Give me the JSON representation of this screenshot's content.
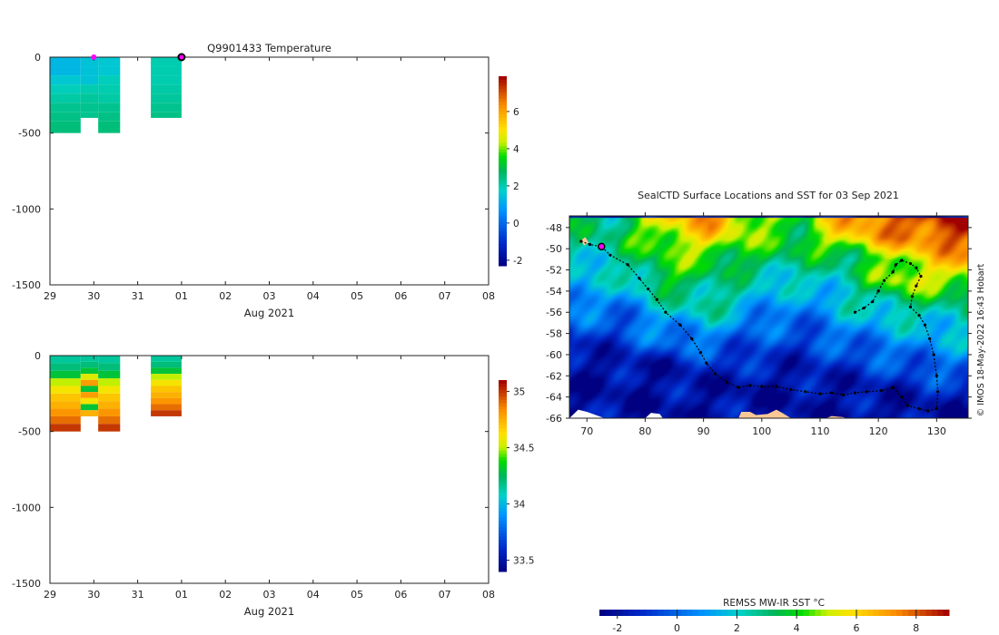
{
  "chart_data": [
    {
      "type": "heatmap",
      "title": "Q9901433  Temperature",
      "xlabel": "Aug 2021",
      "ylabel": "",
      "x_ticks": [
        "29",
        "30",
        "31",
        "01",
        "02",
        "03",
        "04",
        "05",
        "06",
        "07",
        "08"
      ],
      "y_ticks": [
        "0",
        "-500",
        "-1000",
        "-1500"
      ],
      "y_tick_values": [
        0,
        -500,
        -1000,
        -1500
      ],
      "ylim": [
        -1500,
        0
      ],
      "xlim_days": [
        0,
        10
      ],
      "colorbar": {
        "range": [
          -2.3,
          7.9
        ],
        "ticks": [
          "-2",
          "0",
          "2",
          "4",
          "6"
        ],
        "tick_values": [
          -2,
          0,
          2,
          4,
          6
        ]
      },
      "profiles": [
        {
          "start_day": 0.0,
          "end_day": 0.7,
          "depths": [
            0,
            -60,
            -120,
            -180,
            -240,
            -300,
            -360,
            -420
          ],
          "max_depth": -500,
          "values": [
            1.3,
            1.3,
            1.6,
            1.9,
            2.1,
            2.3,
            2.4,
            2.5
          ]
        },
        {
          "start_day": 0.7,
          "end_day": 1.1,
          "depths": [
            0,
            -60,
            -120,
            -180,
            -240,
            -300,
            -360
          ],
          "max_depth": -400,
          "values": [
            1.5,
            1.5,
            1.5,
            2.0,
            2.2,
            2.3,
            2.3
          ]
        },
        {
          "start_day": 1.1,
          "end_day": 1.6,
          "depths": [
            0,
            -60,
            -120,
            -180,
            -240,
            -300,
            -360,
            -420
          ],
          "max_depth": -500,
          "values": [
            1.6,
            1.6,
            1.9,
            2.0,
            2.1,
            2.3,
            2.4,
            2.5
          ]
        },
        {
          "start_day": 2.3,
          "end_day": 3.0,
          "depths": [
            0,
            -60,
            -120,
            -180,
            -240,
            -300,
            -360
          ],
          "max_depth": -400,
          "values": [
            2.0,
            2.0,
            2.0,
            2.1,
            2.2,
            2.3,
            2.4
          ]
        }
      ],
      "markers": [
        {
          "day": 1.0,
          "depth": 0,
          "style": "small-magenta"
        },
        {
          "day": 3.0,
          "depth": 0,
          "style": "large-magenta-outlined"
        }
      ]
    },
    {
      "type": "heatmap",
      "title": "",
      "xlabel": "Aug 2021",
      "x_ticks": [
        "29",
        "30",
        "31",
        "01",
        "02",
        "03",
        "04",
        "05",
        "06",
        "07",
        "08"
      ],
      "y_ticks": [
        "0",
        "-500",
        "-1000",
        "-1500"
      ],
      "y_tick_values": [
        0,
        -500,
        -1000,
        -1500
      ],
      "ylim": [
        -1500,
        0
      ],
      "xlim_days": [
        0,
        10
      ],
      "colorbar": {
        "range": [
          33.4,
          35.1
        ],
        "ticks": [
          "35",
          "34.5",
          "34",
          "33.5"
        ],
        "tick_values": [
          35,
          34.5,
          34,
          33.5
        ]
      },
      "profiles": [
        {
          "start_day": 0.0,
          "end_day": 0.7,
          "depths": [
            0,
            -50,
            -100,
            -150,
            -200,
            -250,
            -300,
            -350,
            -400,
            -450
          ],
          "max_depth": -500,
          "values": [
            34.15,
            34.2,
            34.3,
            34.5,
            34.6,
            34.7,
            34.75,
            34.82,
            34.9,
            35.0
          ]
        },
        {
          "start_day": 0.7,
          "end_day": 1.1,
          "depths": [
            0,
            -40,
            -80,
            -120,
            -160,
            -200,
            -240,
            -280,
            -320,
            -360
          ],
          "max_depth": -400,
          "values": [
            34.15,
            34.2,
            34.3,
            34.55,
            34.8,
            34.3,
            34.8,
            34.6,
            34.3,
            34.75
          ]
        },
        {
          "start_day": 1.1,
          "end_day": 1.6,
          "depths": [
            0,
            -50,
            -100,
            -150,
            -200,
            -250,
            -300,
            -350,
            -400,
            -450
          ],
          "max_depth": -500,
          "values": [
            34.15,
            34.2,
            34.3,
            34.5,
            34.6,
            34.7,
            34.75,
            34.82,
            34.9,
            35.0
          ]
        },
        {
          "start_day": 2.3,
          "end_day": 3.0,
          "depths": [
            0,
            -40,
            -80,
            -120,
            -160,
            -200,
            -240,
            -280,
            -320,
            -360
          ],
          "max_depth": -400,
          "values": [
            34.15,
            34.2,
            34.3,
            34.5,
            34.6,
            34.7,
            34.75,
            34.82,
            34.9,
            35.0
          ]
        }
      ]
    },
    {
      "type": "heatmap",
      "title": "SealCTD Surface Locations and SST for 03 Sep 2021",
      "x_ticks": [
        "70",
        "80",
        "90",
        "100",
        "110",
        "120",
        "130"
      ],
      "x_tick_values": [
        70,
        80,
        90,
        100,
        110,
        120,
        130
      ],
      "y_ticks": [
        "-48",
        "-50",
        "-52",
        "-54",
        "-56",
        "-58",
        "-60",
        "-62",
        "-64",
        "-66"
      ],
      "y_tick_values": [
        -48,
        -50,
        -52,
        -54,
        -56,
        -58,
        -60,
        -62,
        -64,
        -66
      ],
      "xlim": [
        67,
        135.4
      ],
      "ylim": [
        -66,
        -46.9
      ],
      "credit": "© IMOS 18-May-2022 16:43 Hobart",
      "colorbar": {
        "label": "REMSS MW-IR SST °C",
        "range": [
          -2.6,
          9.1
        ],
        "ticks": [
          "-2",
          "0",
          "2",
          "4",
          "6",
          "8"
        ],
        "tick_values": [
          -2,
          0,
          2,
          4,
          6,
          8
        ]
      },
      "sst_grid": {
        "lats": [
          -47,
          -49,
          -51,
          -53,
          -55,
          -57,
          -59,
          -61,
          -63,
          -65,
          -66
        ],
        "lons": [
          67,
          75,
          83,
          91,
          99,
          107,
          115,
          123,
          131,
          135.4
        ],
        "values": [
          [
            3,
            3,
            6,
            7,
            5,
            4,
            7,
            8,
            9,
            9
          ],
          [
            2.5,
            3,
            5,
            6,
            4,
            4,
            6,
            7,
            8,
            8
          ],
          [
            2,
            2.5,
            4,
            4,
            3.5,
            3,
            3,
            5,
            6,
            7
          ],
          [
            1.5,
            1.5,
            4,
            3,
            2,
            2,
            2.5,
            5,
            5,
            5
          ],
          [
            1,
            0.5,
            2,
            3,
            1.5,
            0.5,
            2,
            3,
            3,
            3
          ],
          [
            0,
            -0.5,
            1,
            1.5,
            0,
            0,
            1,
            1.5,
            2,
            2
          ],
          [
            -1.8,
            -1,
            0,
            0,
            -0.5,
            -1,
            0,
            0.5,
            1,
            1
          ],
          [
            -2,
            -2,
            -2,
            -1,
            -1.5,
            -1.5,
            -1,
            -0.5,
            0,
            0
          ],
          [
            -2,
            -2,
            -2,
            -2,
            -2,
            -2,
            -1.8,
            -1.5,
            -1,
            -1
          ],
          [
            -2,
            -2,
            -2,
            -2,
            -2,
            -2,
            -2,
            -2,
            -2,
            -2
          ],
          [
            -2,
            -2,
            -2,
            -2,
            -2,
            -2,
            -2,
            -2,
            -2,
            -2
          ]
        ]
      },
      "track": [
        [
          69,
          -49.3
        ],
        [
          70.5,
          -49.6
        ],
        [
          72.5,
          -49.8
        ],
        [
          74,
          -50.6
        ],
        [
          77,
          -51.5
        ],
        [
          79,
          -52.8
        ],
        [
          80.5,
          -53.8
        ],
        [
          82,
          -54.8
        ],
        [
          83.5,
          -56
        ],
        [
          86,
          -57.2
        ],
        [
          88,
          -58.5
        ],
        [
          89.5,
          -59.8
        ],
        [
          90.5,
          -60.8
        ],
        [
          92,
          -61.8
        ],
        [
          94,
          -62.6
        ],
        [
          96,
          -63.1
        ],
        [
          98,
          -62.9
        ],
        [
          100,
          -63
        ],
        [
          102.5,
          -63
        ],
        [
          105,
          -63.3
        ],
        [
          107.5,
          -63.5
        ],
        [
          110,
          -63.7
        ],
        [
          112,
          -63.6
        ],
        [
          114,
          -63.8
        ],
        [
          116,
          -63.6
        ],
        [
          118,
          -63.5
        ],
        [
          120.5,
          -63.4
        ],
        [
          122.5,
          -63.1
        ],
        [
          124,
          -64
        ],
        [
          125,
          -64.8
        ],
        [
          127,
          -65.1
        ],
        [
          128.5,
          -65.3
        ],
        [
          130,
          -65.1
        ],
        [
          130.2,
          -63.5
        ],
        [
          130,
          -62
        ],
        [
          129.5,
          -60
        ],
        [
          128.8,
          -58.5
        ],
        [
          128,
          -57.2
        ],
        [
          127,
          -56.3
        ],
        [
          125.5,
          -55.5
        ],
        [
          125.8,
          -54.5
        ],
        [
          126.5,
          -53.5
        ],
        [
          127.3,
          -52.6
        ],
        [
          126.5,
          -51.8
        ],
        [
          125.5,
          -51.4
        ],
        [
          124,
          -51.1
        ],
        [
          123,
          -51.5
        ],
        [
          122.5,
          -52.2
        ],
        [
          121,
          -53
        ],
        [
          120,
          -54
        ],
        [
          119,
          -55
        ],
        [
          117.5,
          -55.6
        ],
        [
          116,
          -56
        ]
      ],
      "current_location": [
        72.5,
        -49.8
      ],
      "land": [
        {
          "fill": "#fcc896",
          "points": [
            [
              96,
              -66
            ],
            [
              96.5,
              -65.4
            ],
            [
              98,
              -65.4
            ],
            [
              99,
              -65.7
            ],
            [
              101,
              -65.6
            ],
            [
              102.5,
              -65.2
            ],
            [
              103.5,
              -65.5
            ],
            [
              105,
              -66
            ]
          ]
        },
        {
          "fill": "#ffffff",
          "points": [
            [
              67,
              -66
            ],
            [
              68.5,
              -65.2
            ],
            [
              70,
              -65.4
            ],
            [
              72,
              -65.8
            ],
            [
              73,
              -66
            ]
          ]
        },
        {
          "fill": "#ffffff",
          "points": [
            [
              80,
              -66
            ],
            [
              81,
              -65.5
            ],
            [
              82.5,
              -65.6
            ],
            [
              83,
              -66
            ]
          ]
        },
        {
          "fill": "#fcc896",
          "points": [
            [
              111,
              -66
            ],
            [
              112,
              -65.8
            ],
            [
              114,
              -65.9
            ],
            [
              114.5,
              -66
            ]
          ]
        },
        {
          "fill": "#fcc896",
          "points": [
            [
              69,
              -49.2
            ],
            [
              69.7,
              -48.9
            ],
            [
              70.3,
              -49.4
            ],
            [
              69.5,
              -49.7
            ]
          ]
        }
      ]
    }
  ]
}
